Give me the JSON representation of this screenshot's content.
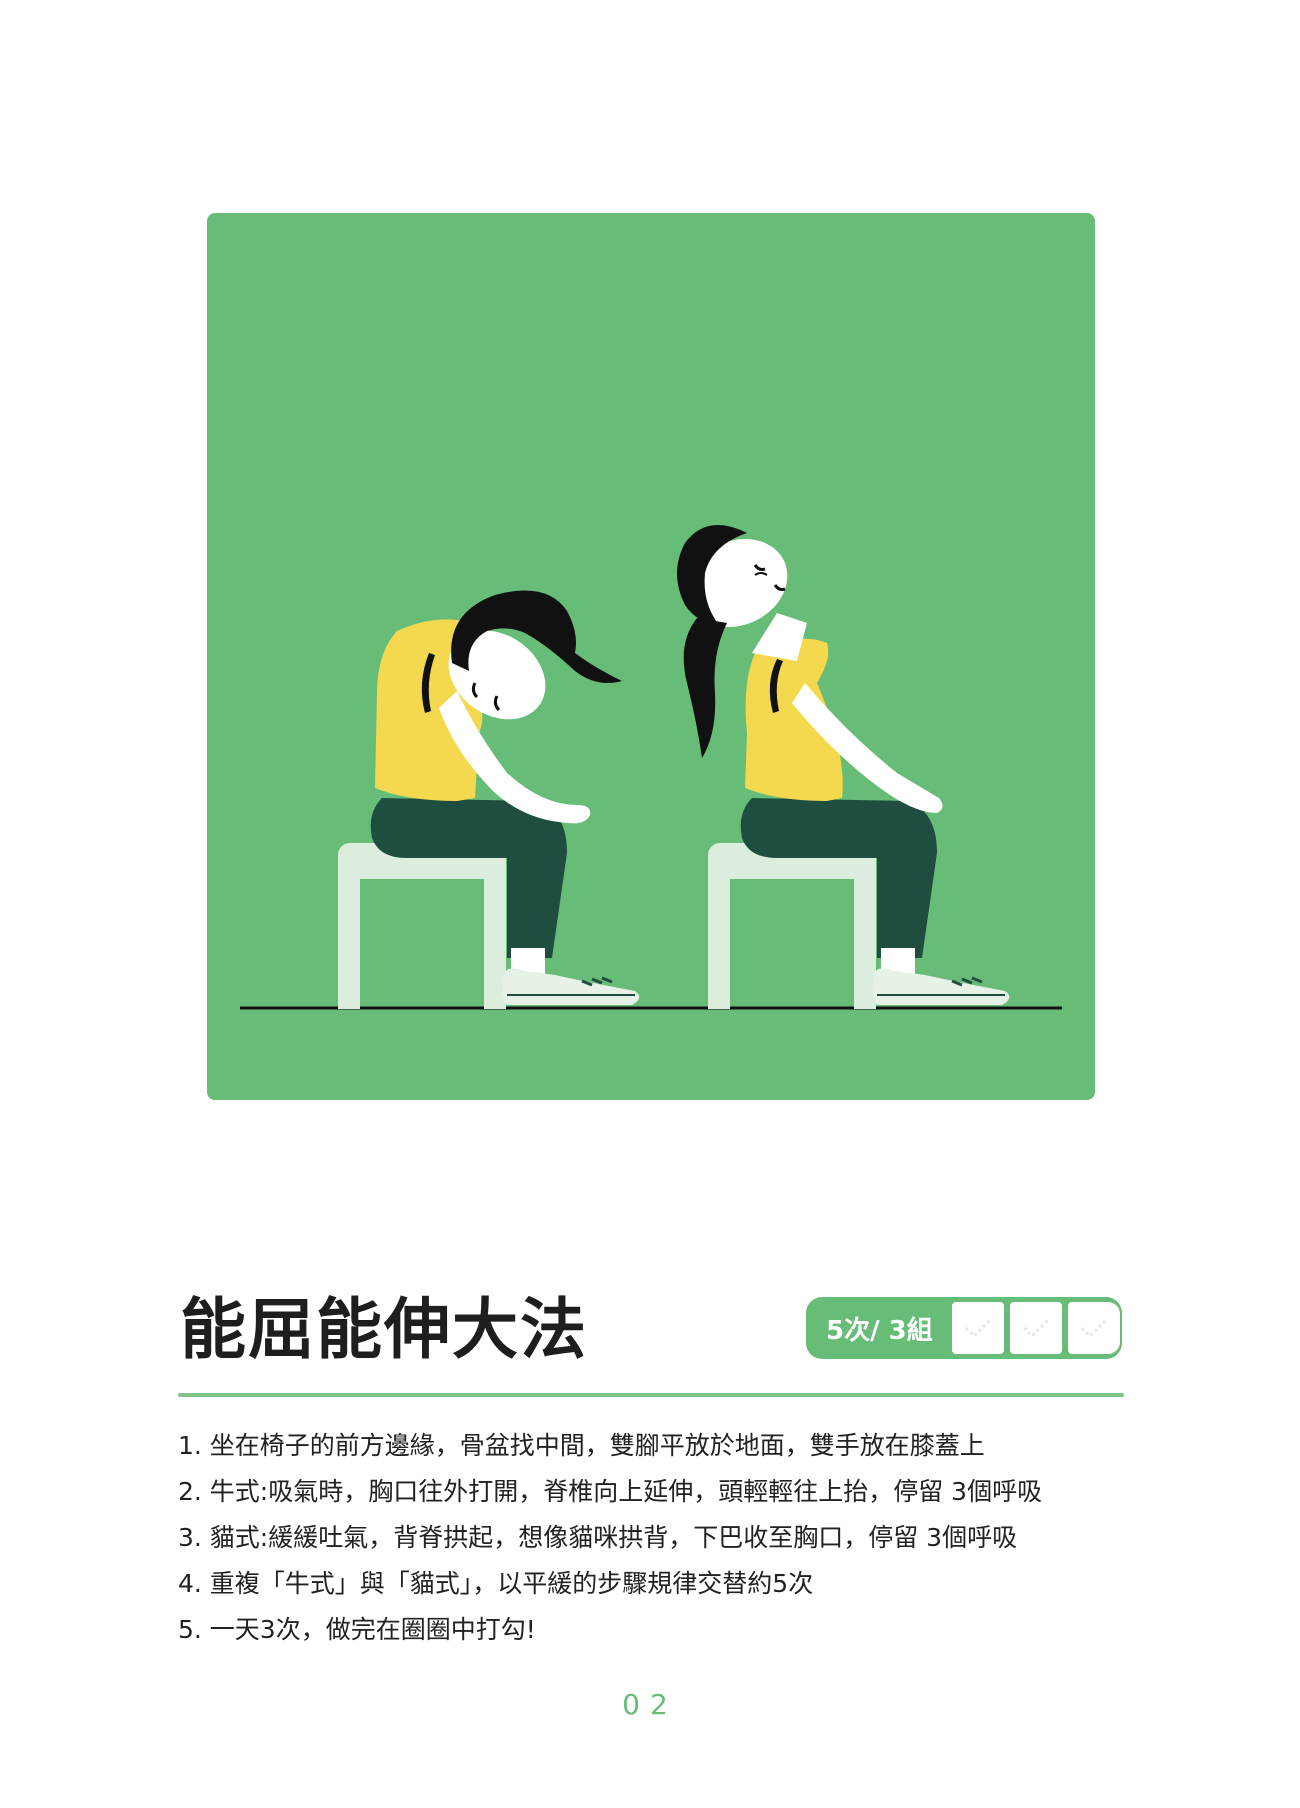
{
  "title": "能屈能伸大法",
  "counter": {
    "label": "5次/ 3組",
    "boxes": [
      {
        "icon": "check-icon",
        "checked": false
      },
      {
        "icon": "check-icon",
        "checked": false
      },
      {
        "icon": "check-icon",
        "checked": false
      }
    ]
  },
  "steps": [
    "1. 坐在椅子的前方邊緣，骨盆找中間，雙腳平放於地面，雙手放在膝蓋上",
    "2. 牛式:吸氣時，胸口往外打開，脊椎向上延伸，頭輕輕往上抬，停留 3個呼吸",
    "3. 貓式:緩緩吐氣，背脊拱起，想像貓咪拱背，下巴收至胸口，停留 3個呼吸",
    "4. 重複「牛式」與「貓式」，以平緩的步驟規律交替約5次",
    "5. 一天3次，做完在圈圈中打勾!"
  ],
  "page_number": "02",
  "colors": {
    "accent_green": "#67bd77",
    "shirt_yellow": "#f4d94f",
    "pants_green": "#1f4e41",
    "chair": "#dceddd"
  }
}
